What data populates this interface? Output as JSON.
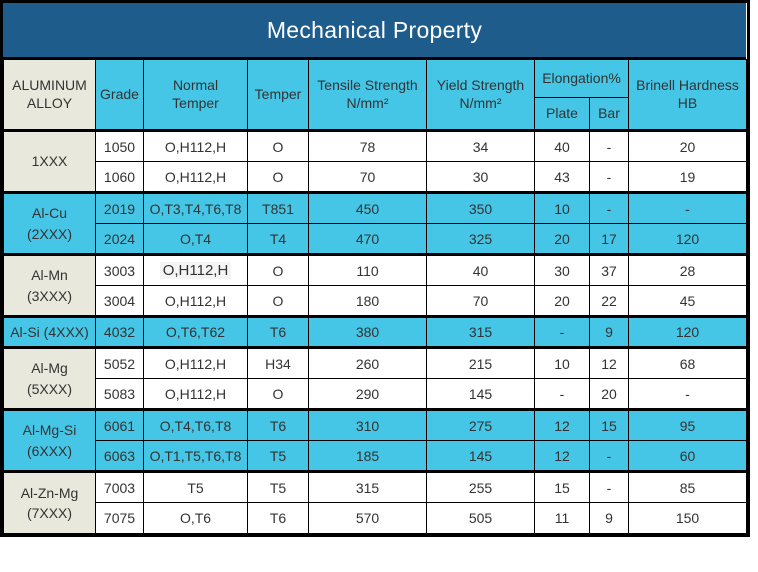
{
  "title": "Mechanical Property",
  "colors": {
    "title_bg": "#1e5c8c",
    "title_text": "#ffffff",
    "header_bg": "#45c6e6",
    "shaded_row_bg": "#45c6e6",
    "alloy_col_bg": "#e9e8dc",
    "row_bg": "#ffffff",
    "border": "#000000",
    "text": "#333333"
  },
  "table": {
    "headers": {
      "alloy": "ALUMINUM\nALLOY",
      "grade": "Grade",
      "normal_temper": "Normal\nTemper",
      "temper": "Temper",
      "tensile": "Tensile Strength\nN/mm²",
      "yield": "Yield Strength\nN/mm²",
      "elongation": "Elongation%",
      "plate": "Plate",
      "bar": "Bar",
      "brinell": "Brinell Hardness\nHB"
    },
    "groups": [
      {
        "label": "1XXX",
        "shaded": false,
        "rows": [
          {
            "grade": "1050",
            "normal_temper": "O,H112,H",
            "temper": "O",
            "tensile_strength": "78",
            "yield_strength": "34",
            "elongation_plate": "40",
            "elongation_bar": "-",
            "brinell_hardness": "20"
          },
          {
            "grade": "1060",
            "normal_temper": "O,H112,H",
            "temper": "O",
            "tensile_strength": "70",
            "yield_strength": "30",
            "elongation_plate": "43",
            "elongation_bar": "-",
            "brinell_hardness": "19"
          }
        ]
      },
      {
        "label": "Al-Cu\n(2XXX)",
        "shaded": true,
        "rows": [
          {
            "grade": "2019",
            "normal_temper": "O,T3,T4,T6,T8",
            "temper": "T851",
            "tensile_strength": "450",
            "yield_strength": "350",
            "elongation_plate": "10",
            "elongation_bar": "-",
            "brinell_hardness": "-"
          },
          {
            "grade": "2024",
            "normal_temper": "O,T4",
            "temper": "T4",
            "tensile_strength": "470",
            "yield_strength": "325",
            "elongation_plate": "20",
            "elongation_bar": "17",
            "brinell_hardness": "120"
          }
        ]
      },
      {
        "label": "Al-Mn\n(3XXX)",
        "shaded": false,
        "rows": [
          {
            "grade": "3003",
            "normal_temper": "O,H112,H",
            "normal_temper_highlight": true,
            "temper": "O",
            "tensile_strength": "110",
            "yield_strength": "40",
            "elongation_plate": "30",
            "elongation_bar": "37",
            "brinell_hardness": "28"
          },
          {
            "grade": "3004",
            "normal_temper": "O,H112,H",
            "temper": "O",
            "tensile_strength": "180",
            "yield_strength": "70",
            "elongation_plate": "20",
            "elongation_bar": "22",
            "brinell_hardness": "45"
          }
        ]
      },
      {
        "label": "Al-Si (4XXX)",
        "shaded": true,
        "rows": [
          {
            "grade": "4032",
            "normal_temper": "O,T6,T62",
            "temper": "T6",
            "tensile_strength": "380",
            "yield_strength": "315",
            "elongation_plate": "-",
            "elongation_bar": "9",
            "brinell_hardness": "120"
          }
        ]
      },
      {
        "label": "Al-Mg\n(5XXX)",
        "shaded": false,
        "rows": [
          {
            "grade": "5052",
            "normal_temper": "O,H112,H",
            "temper": "H34",
            "tensile_strength": "260",
            "yield_strength": "215",
            "elongation_plate": "10",
            "elongation_bar": "12",
            "brinell_hardness": "68"
          },
          {
            "grade": "5083",
            "normal_temper": "O,H112,H",
            "temper": "O",
            "tensile_strength": "290",
            "yield_strength": "145",
            "elongation_plate": "-",
            "elongation_bar": "20",
            "brinell_hardness": "-"
          }
        ]
      },
      {
        "label": "Al-Mg-Si\n(6XXX)",
        "shaded": true,
        "rows": [
          {
            "grade": "6061",
            "normal_temper": "O,T4,T6,T8",
            "temper": "T6",
            "tensile_strength": "310",
            "yield_strength": "275",
            "elongation_plate": "12",
            "elongation_bar": "15",
            "brinell_hardness": "95"
          },
          {
            "grade": "6063",
            "normal_temper": "O,T1,T5,T6,T8",
            "temper": "T5",
            "tensile_strength": "185",
            "yield_strength": "145",
            "elongation_plate": "12",
            "elongation_bar": "-",
            "brinell_hardness": "60"
          }
        ]
      },
      {
        "label": "Al-Zn-Mg\n(7XXX)",
        "shaded": false,
        "rows": [
          {
            "grade": "7003",
            "normal_temper": "T5",
            "temper": "T5",
            "tensile_strength": "315",
            "yield_strength": "255",
            "elongation_plate": "15",
            "elongation_bar": "-",
            "brinell_hardness": "85"
          },
          {
            "grade": "7075",
            "normal_temper": "O,T6",
            "temper": "T6",
            "tensile_strength": "570",
            "yield_strength": "505",
            "elongation_plate": "11",
            "elongation_bar": "9",
            "brinell_hardness": "150"
          }
        ]
      }
    ]
  }
}
